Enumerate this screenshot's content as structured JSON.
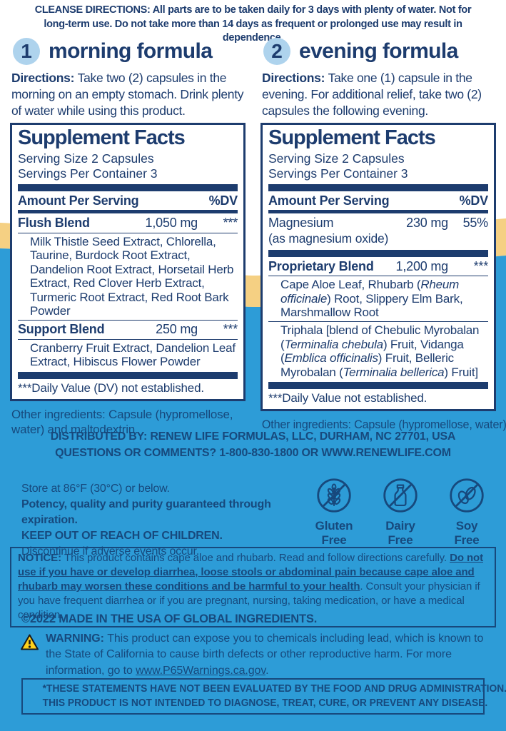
{
  "colors": {
    "navy": "#1d3c6e",
    "navy_on_blue": "#17497d",
    "blue_background": "#2d9cd7",
    "yellow_stripe": "#f5d083",
    "number_circle": "#aed3ed",
    "warning_triangle": "#ffd21a",
    "panel_background": "#ffffff"
  },
  "top_directions": [
    {
      "t": "CLEANSE DIRECTIONS: ",
      "b": true
    },
    {
      "t": "All parts are to be taken daily for 3 days with plenty of water. Not for long-term use. Do not take more than 14 days as frequent or prolonged use may result in dependence."
    }
  ],
  "formulas": [
    {
      "number": "1",
      "title": "morning formula",
      "directions": [
        {
          "t": "Directions: ",
          "b": true
        },
        {
          "t": "Take two (2) capsules in the morning on an empty stomach. Drink plenty of water while using this product."
        }
      ],
      "panel": {
        "title": "Supplement Facts",
        "serving_size": "Serving Size 2 Capsules",
        "servings": "Servings Per Container 3",
        "amount_header": "Amount Per Serving",
        "dv_header": "%DV",
        "row_flush": {
          "name": "Flush Blend",
          "amount": "1,050 mg",
          "dv": "***"
        },
        "flush_detail": "Milk Thistle Seed Extract, Chlorella, Taurine, Burdock Root Extract, Dandelion Root Extract, Horsetail Herb Extract, Red Clover Herb Extract, Turmeric Root Extract, Red Root Bark Powder",
        "row_support": {
          "name": "Support Blend",
          "amount": "250 mg",
          "dv": "***"
        },
        "support_detail": "Cranberry Fruit Extract, Dandelion Leaf Extract, Hibiscus Flower Powder",
        "footnote": "***Daily Value (DV) not established."
      },
      "other_ingredients": "Other ingredients: Capsule (hypromellose, water) and maltodextrin."
    },
    {
      "number": "2",
      "title": "evening formula",
      "directions": [
        {
          "t": "Directions: ",
          "b": true
        },
        {
          "t": "Take one (1) capsule in the evening. For additional relief, take two (2) capsules the following evening."
        }
      ],
      "panel": {
        "title": "Supplement Facts",
        "serving_size": "Serving Size 2 Capsules",
        "servings": "Servings Per Container 3",
        "amount_header": "Amount Per Serving",
        "dv_header": "%DV",
        "row_magnesium": {
          "name": "Magnesium",
          "name_sub": "(as magnesium oxide)",
          "amount": "230 mg",
          "dv": "55%"
        },
        "row_blend": {
          "name": "Proprietary Blend",
          "amount": "1,200 mg",
          "dv": "***"
        },
        "blend_detail": [
          {
            "t": "Cape Aloe Leaf, Rhubarb ("
          },
          {
            "t": "Rheum officinale",
            "i": true
          },
          {
            "t": ") Root, Slippery Elm Bark, Marshmallow Root"
          }
        ],
        "triphala_detail": [
          {
            "t": "Triphala [blend of Chebulic Myrobalan ("
          },
          {
            "t": "Terminalia chebula",
            "i": true
          },
          {
            "t": ") Fruit, Vidanga ("
          },
          {
            "t": "Emblica officinalis",
            "i": true
          },
          {
            "t": ") Fruit, Belleric Myrobalan ("
          },
          {
            "t": "Terminalia bellerica",
            "i": true
          },
          {
            "t": ") Fruit]"
          }
        ],
        "footnote": "***Daily Value not established."
      },
      "other_ingredients": "Other ingredients: Capsule (hypromellose, water)."
    }
  ],
  "distributor": {
    "line1": "DISTRIBUTED BY: RENEW LIFE FORMULAS, LLC, DURHAM, NC 27701, USA",
    "line2": [
      {
        "t": "QUESTIONS OR COMMENTS? ",
        "b": true
      },
      {
        "t": "1-800-830-1800 OR WWW.RENEWLIFE.COM"
      }
    ]
  },
  "storage": {
    "line1": "Store at 86°F (30°C) or below.",
    "line2": "Potency, quality and purity guaranteed through expiration.",
    "line3": "KEEP OUT OF REACH OF CHILDREN.",
    "line4": "Discontinue if adverse events occur."
  },
  "badges": [
    {
      "icon": "wheat-crossed-icon",
      "line1": "Gluten",
      "line2": "Free"
    },
    {
      "icon": "milk-bottle-crossed-icon",
      "line1": "Dairy",
      "line2": "Free"
    },
    {
      "icon": "soy-beans-crossed-icon",
      "line1": "Soy",
      "line2": "Free"
    }
  ],
  "notice": [
    {
      "t": "NOTICE: ",
      "b": true
    },
    {
      "t": "This product contains cape aloe and rhubarb. Read and follow directions carefully. "
    },
    {
      "t": "Do not use if you have or develop diarrhea, loose stools or abdominal pain because cape aloe and rhubarb may worsen these conditions and be harmful to your health",
      "b": true,
      "u": true
    },
    {
      "t": ". Consult your physician if you have frequent diarrhea or if you are pregnant, nursing, taking medication, or have a medical condition."
    }
  ],
  "copyright": "©2022 MADE IN THE USA OF GLOBAL INGREDIENTS.",
  "prop65": [
    {
      "t": "WARNING: ",
      "b": true
    },
    {
      "t": "This product can expose you to chemicals including lead, which is known to the State of California to cause birth defects or other reproductive harm. For more information, go to "
    },
    {
      "t": "www.P65Warnings.ca.gov",
      "u": true
    },
    {
      "t": "."
    }
  ],
  "fda_disclaimer": {
    "line1": "*THESE STATEMENTS HAVE NOT BEEN EVALUATED BY THE FOOD AND DRUG ADMINISTRATION.",
    "line2": "THIS PRODUCT IS NOT INTENDED TO DIAGNOSE, TREAT, CURE, OR PREVENT ANY DISEASE."
  }
}
